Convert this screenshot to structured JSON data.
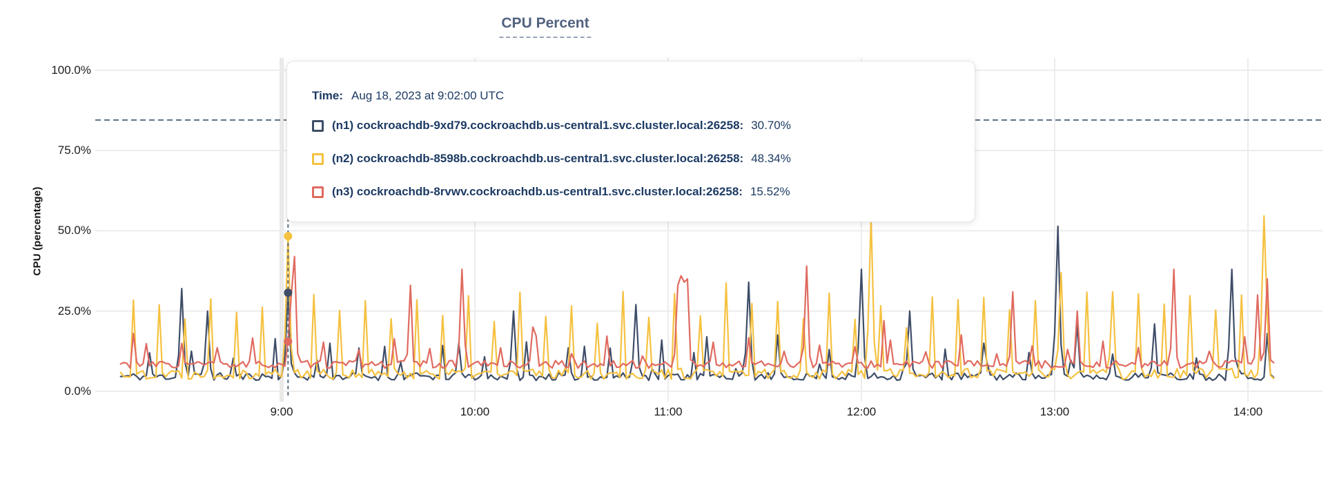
{
  "chart": {
    "title": "CPU Percent",
    "ylabel": "CPU (percentage)"
  },
  "tooltip": {
    "time_label": "Time:",
    "time_value": "Aug 18, 2023 at 9:02:00 UTC",
    "rows": [
      {
        "id": "n1",
        "label": "(n1) cockroachdb-9xd79.cockroachdb.us-central1.svc.cluster.local:26258:",
        "value": "30.70%",
        "color": "#3e4d68"
      },
      {
        "id": "n2",
        "label": "(n2) cockroachdb-8598b.cockroachdb.us-central1.svc.cluster.local:26258:",
        "value": "48.34%",
        "color": "#f5c140"
      },
      {
        "id": "n3",
        "label": "(n3) cockroachdb-8rvwv.cockroachdb.us-central1.svc.cluster.local:26258:",
        "value": "15.52%",
        "color": "#e06a60"
      }
    ]
  },
  "chart_data": {
    "type": "line",
    "title": "CPU Percent",
    "ylabel": "CPU (percentage)",
    "ylim": [
      0,
      100
    ],
    "grid": true,
    "legend_position": "tooltip-overlay",
    "y_ticks": [
      {
        "label": "100.0%",
        "value": 100
      },
      {
        "label": "75.0%",
        "value": 75
      },
      {
        "label": "50.0%",
        "value": 50
      },
      {
        "label": "25.0%",
        "value": 25
      },
      {
        "label": "0.0%",
        "value": 0
      }
    ],
    "x_ticks": [
      {
        "label": "9:00",
        "minutes": 540
      },
      {
        "label": "10:00",
        "minutes": 600
      },
      {
        "label": "11:00",
        "minutes": 660
      },
      {
        "label": "12:00",
        "minutes": 720
      },
      {
        "label": "13:00",
        "minutes": 780
      },
      {
        "label": "14:00",
        "minutes": 840
      }
    ],
    "x_domain_minutes": [
      490,
      848
    ],
    "sample_interval_minutes": 1,
    "threshold_line": {
      "value": 84.5,
      "style": "dashed",
      "color": "#5b6f80"
    },
    "crosshair": {
      "minutes": 542,
      "time": "9:02:00 UTC",
      "color": "#5b6f80"
    },
    "hover_values": {
      "n1": 30.7,
      "n2": 48.34,
      "n3": 15.52
    },
    "series": [
      {
        "name": "(n1) cockroachdb-9xd79.cockroachdb.us-central1.svc.cluster.local:26258",
        "short": "n1",
        "color": "#3e4d68",
        "seed": 11,
        "baseline": 4.6,
        "noise": 1.2,
        "periodic": {
          "every": 13,
          "phase": 5,
          "heights": [
            9,
            13,
            10,
            15,
            11,
            14
          ],
          "jitter": 3
        },
        "spikes": [
          [
            499,
            12
          ],
          [
            509,
            32
          ],
          [
            517,
            25
          ],
          [
            542,
            30.7
          ],
          [
            555,
            15
          ],
          [
            572,
            14
          ],
          [
            595,
            15
          ],
          [
            612,
            25
          ],
          [
            634,
            14
          ],
          [
            650,
            27
          ],
          [
            658,
            16
          ],
          [
            672,
            17
          ],
          [
            685,
            34
          ],
          [
            710,
            13
          ],
          [
            720,
            38
          ],
          [
            735,
            25
          ],
          [
            758,
            15
          ],
          [
            781,
            51.4
          ],
          [
            787,
            21
          ],
          [
            811,
            21
          ],
          [
            835,
            38
          ],
          [
            846,
            18
          ]
        ]
      },
      {
        "name": "(n2) cockroachdb-8598b.cockroachdb.us-central1.svc.cluster.local:26258",
        "short": "n2",
        "color": "#f5c140",
        "seed": 22,
        "baseline": 5.5,
        "noise": 1.7,
        "periodic": {
          "every": 8,
          "phase": 6,
          "heights": [
            26,
            29,
            23,
            30,
            25,
            28,
            22,
            31
          ],
          "jitter": 3
        },
        "spikes": [
          [
            542,
            48.34
          ],
          [
            723,
            54
          ],
          [
            782,
            37
          ],
          [
            798,
            31
          ],
          [
            845,
            54.6
          ]
        ]
      },
      {
        "name": "(n3) cockroachdb-8rvwv.cockroachdb.us-central1.svc.cluster.local:26258",
        "short": "n3",
        "color": "#e06a60",
        "seed": 33,
        "baseline": 8.4,
        "noise": 1.2,
        "periodic": {
          "every": 11,
          "phase": 3,
          "heights": [
            13,
            16,
            12,
            15,
            14,
            17
          ],
          "jitter": 2
        },
        "spikes": [
          [
            494,
            18
          ],
          [
            542,
            15.52
          ],
          [
            543,
            30
          ],
          [
            544,
            42
          ],
          [
            580,
            33
          ],
          [
            596,
            38
          ],
          [
            618,
            20
          ],
          [
            663,
            33
          ],
          [
            664,
            36
          ],
          [
            665,
            34
          ],
          [
            666,
            35
          ],
          [
            703,
            39
          ],
          [
            727,
            22
          ],
          [
            767,
            31
          ],
          [
            787,
            25
          ],
          [
            817,
            38
          ],
          [
            843,
            30
          ],
          [
            846,
            35
          ]
        ]
      }
    ]
  }
}
